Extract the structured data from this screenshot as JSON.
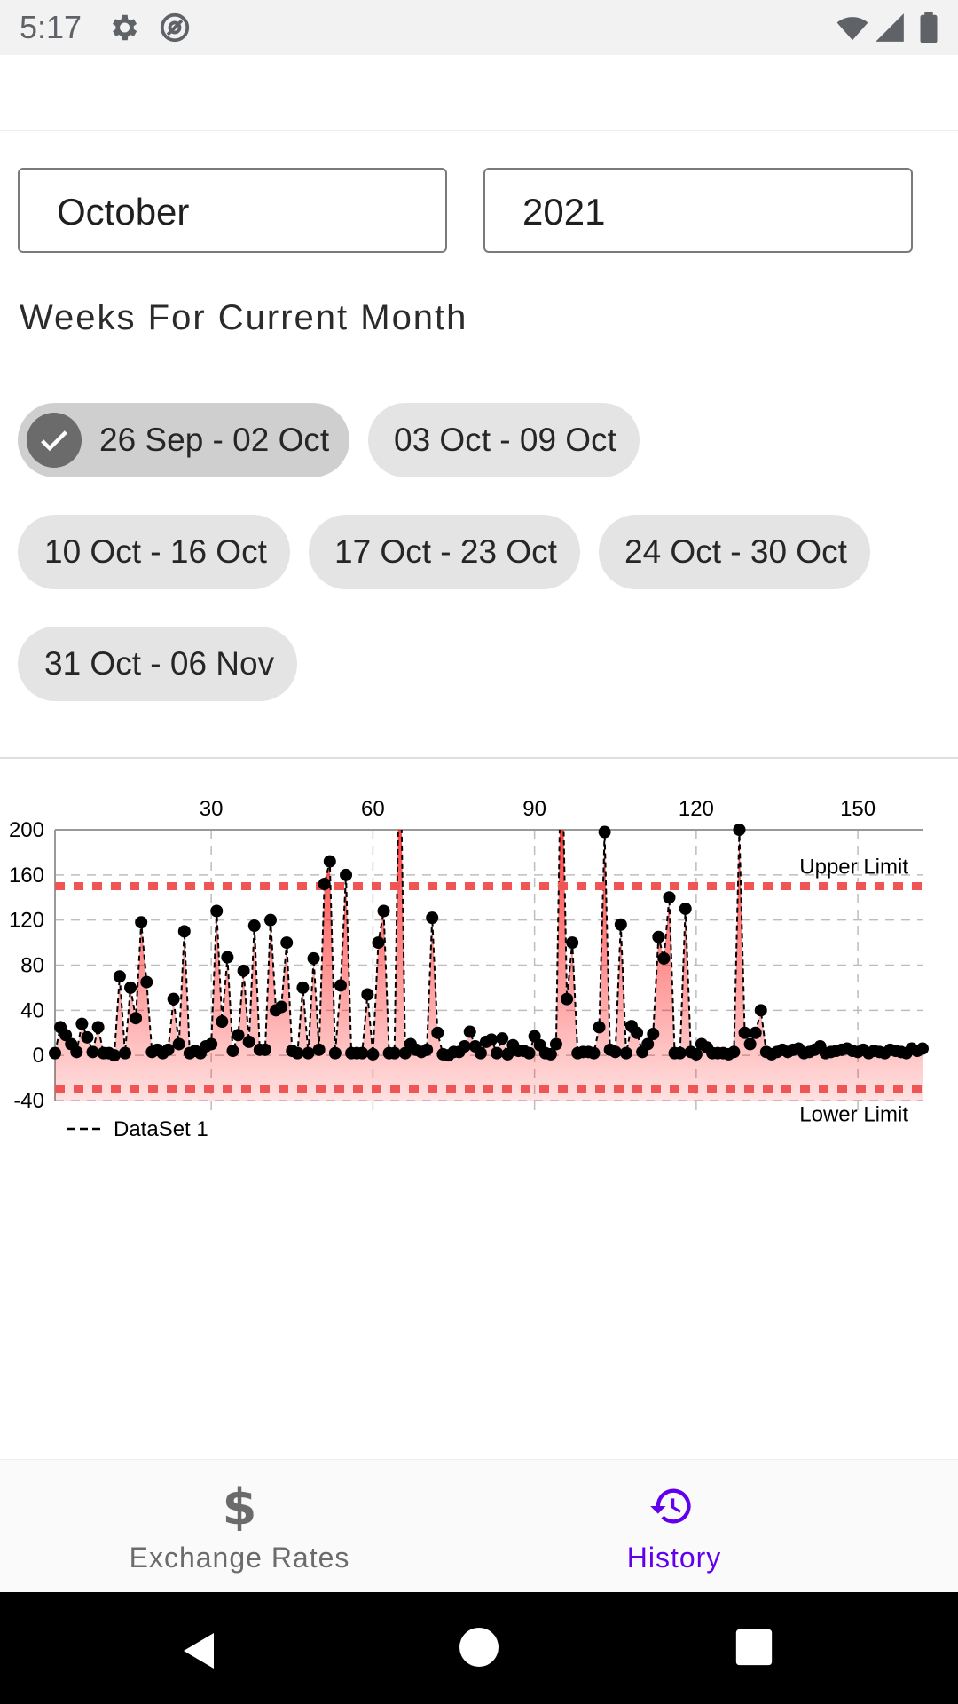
{
  "status_bar": {
    "time": "5:17",
    "icons": [
      "settings-gear-icon",
      "at-sign-icon",
      "wifi-icon",
      "signal-icon",
      "battery-icon"
    ]
  },
  "selectors": {
    "month": "October",
    "year": "2021"
  },
  "weeks_section": {
    "title": "Weeks For Current Month",
    "chips": [
      {
        "label": "26 Sep - 02 Oct",
        "selected": true
      },
      {
        "label": "03 Oct - 09 Oct",
        "selected": false
      },
      {
        "label": "10 Oct - 16 Oct",
        "selected": false
      },
      {
        "label": "17 Oct - 23 Oct",
        "selected": false
      },
      {
        "label": "24 Oct - 30 Oct",
        "selected": false
      },
      {
        "label": "31 Oct - 06 Nov",
        "selected": false
      }
    ]
  },
  "chart_data": {
    "type": "line",
    "x_ticks": [
      "30",
      "60",
      "90",
      "120",
      "150"
    ],
    "xlim": [
      1,
      162
    ],
    "y_ticks": [
      "200",
      "160",
      "120",
      "80",
      "40",
      "0",
      "-40"
    ],
    "ylim": [
      -40,
      200
    ],
    "limit_lines": [
      {
        "label": "Upper Limit",
        "value": 150
      },
      {
        "label": "Lower Limit",
        "value": -30
      }
    ],
    "series": [
      {
        "name": "DataSet 1",
        "x": [
          1,
          2,
          3,
          4,
          5,
          6,
          7,
          8,
          9,
          10,
          11,
          12,
          13,
          14,
          15,
          16,
          17,
          18,
          19,
          20,
          21,
          22,
          23,
          24,
          25,
          26,
          27,
          28,
          29,
          30,
          31,
          32,
          33,
          34,
          35,
          36,
          37,
          38,
          39,
          40,
          41,
          42,
          43,
          44,
          45,
          46,
          47,
          48,
          49,
          50,
          51,
          52,
          53,
          54,
          55,
          56,
          57,
          58,
          59,
          60,
          61,
          62,
          63,
          64,
          65,
          66,
          67,
          68,
          69,
          70,
          71,
          72,
          73,
          74,
          75,
          76,
          77,
          78,
          79,
          80,
          81,
          82,
          83,
          84,
          85,
          86,
          87,
          88,
          89,
          90,
          91,
          92,
          93,
          94,
          95,
          96,
          97,
          98,
          99,
          100,
          101,
          102,
          103,
          104,
          105,
          106,
          107,
          108,
          109,
          110,
          111,
          112,
          113,
          114,
          115,
          116,
          117,
          118,
          119,
          120,
          121,
          122,
          123,
          124,
          125,
          126,
          127,
          128,
          129,
          130,
          131,
          132,
          133,
          134,
          135,
          136,
          137,
          138,
          139,
          140,
          141,
          142,
          143,
          144,
          145,
          146,
          147,
          148,
          149,
          150,
          151,
          152,
          153,
          154,
          155,
          156,
          157,
          158,
          159,
          160,
          161,
          162
        ],
        "values": [
          2,
          25,
          18,
          10,
          3,
          28,
          16,
          3,
          25,
          2,
          2,
          0,
          70,
          2,
          60,
          33,
          118,
          65,
          3,
          5,
          2,
          5,
          50,
          10,
          110,
          2,
          4,
          2,
          8,
          10,
          128,
          30,
          87,
          4,
          18,
          75,
          12,
          115,
          5,
          5,
          120,
          40,
          43,
          100,
          4,
          2,
          60,
          2,
          86,
          5,
          152,
          172,
          2,
          62,
          160,
          2,
          2,
          2,
          54,
          1,
          100,
          128,
          2,
          2,
          300,
          2,
          10,
          5,
          3,
          5,
          122,
          20,
          1,
          0,
          3,
          3,
          8,
          21,
          8,
          2,
          12,
          14,
          2,
          15,
          1,
          9,
          4,
          4,
          2,
          17,
          9,
          2,
          1,
          10,
          300,
          50,
          100,
          2,
          3,
          3,
          2,
          25,
          198,
          5,
          3,
          116,
          2,
          26,
          20,
          3,
          10,
          19,
          105,
          86,
          140,
          2,
          2,
          130,
          3,
          1,
          10,
          7,
          2,
          2,
          2,
          1,
          3,
          200,
          20,
          10,
          20,
          40,
          3,
          1,
          3,
          5,
          3,
          5,
          6,
          2,
          3,
          5,
          8,
          2,
          3,
          4,
          5,
          6,
          4,
          3,
          5,
          2,
          4,
          3,
          2,
          5,
          4,
          3,
          2,
          6,
          4,
          6
        ]
      }
    ],
    "legend": "bottom-left"
  },
  "bottom_nav": {
    "items": [
      {
        "label": "Exchange Rates",
        "icon": "dollar-icon",
        "active": false
      },
      {
        "label": "History",
        "icon": "history-icon",
        "active": true
      }
    ]
  },
  "colors": {
    "accent": "#6200ee",
    "chip_bg": "#e4e4e4",
    "chip_selected_bg": "#cfcfcf",
    "chart_fill": "#ff0000",
    "limit_line": "#f05555"
  }
}
